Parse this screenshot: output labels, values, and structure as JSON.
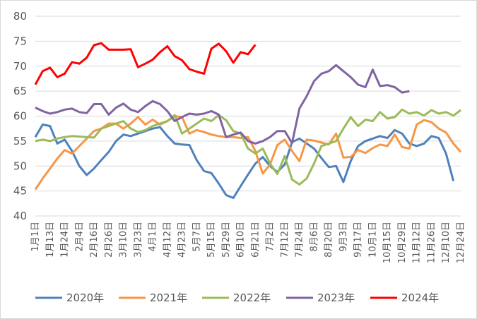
{
  "chart_data": {
    "type": "line",
    "categories": [
      "1月1日",
      null,
      "1月13日",
      null,
      "1月24日",
      null,
      "2月4日",
      null,
      "2月16日",
      null,
      "2月26日",
      null,
      "3月10日",
      null,
      "3月23日",
      null,
      "4月1日",
      null,
      "4月12日",
      null,
      "4月23日",
      null,
      "5月7日",
      null,
      "5月15日",
      null,
      "5月29日",
      null,
      "6月10日",
      null,
      "6月21日",
      null,
      "7月2日",
      null,
      "7月12日",
      null,
      "7月24日",
      null,
      "8月6日",
      null,
      "8月20日",
      null,
      "9月3日",
      null,
      "9月17日",
      null,
      "10月1日",
      null,
      "10月15日",
      null,
      "10月29日",
      null,
      "11月12日",
      null,
      "11月26日",
      null,
      "12月10日",
      null,
      "12月24日"
    ],
    "series": [
      {
        "name": "2020年",
        "color": "#4f81bd",
        "values": [
          55.8,
          58.3,
          58,
          54.5,
          55.3,
          53,
          50,
          48.2,
          49.5,
          51.2,
          52.8,
          55,
          56.3,
          56,
          56.5,
          57,
          57.5,
          57.8,
          56,
          54.5,
          54.3,
          54.2,
          51.2,
          49,
          48.6,
          46.5,
          44.2,
          43.6,
          46,
          48.3,
          50.5,
          51.8,
          50,
          48.8,
          50.3,
          54.8,
          55.5,
          54.5,
          53.5,
          51.6,
          49.8,
          50,
          46.8,
          51,
          54,
          55,
          55.5,
          56,
          55.6,
          57.2,
          56.5,
          54.5,
          54,
          54.5,
          56,
          55.6,
          52.5,
          47,
          null
        ]
      },
      {
        "name": "2021年",
        "color": "#f79646",
        "values": [
          45.3,
          47.5,
          49.5,
          51.5,
          53.2,
          52.5,
          54,
          55.5,
          57,
          57.5,
          58.5,
          58.5,
          57.5,
          58.5,
          59.8,
          58.3,
          59.3,
          58.3,
          59,
          60,
          59.8,
          56.5,
          57.2,
          56.8,
          56.3,
          56,
          55.8,
          55.8,
          55.6,
          55.8,
          53,
          48.5,
          50.3,
          54.2,
          55.3,
          53,
          51,
          55.3,
          55.1,
          54.7,
          54.3,
          56.5,
          51.7,
          51.8,
          53.2,
          52.6,
          53.6,
          54.3,
          54,
          56.3,
          53.8,
          53.5,
          58.3,
          59.2,
          58.8,
          57.5,
          56.7,
          54.5,
          52.8
        ]
      },
      {
        "name": "2022年",
        "color": "#9bbb59",
        "values": [
          55,
          55.3,
          55,
          55.5,
          55.8,
          56,
          55.9,
          55.8,
          55.7,
          57.5,
          58,
          58.5,
          59,
          57.5,
          56.8,
          57.2,
          58,
          58.5,
          59,
          60.2,
          56.5,
          57.5,
          58.5,
          59.5,
          59,
          60.2,
          59.2,
          57,
          56.5,
          53.5,
          52.5,
          53.5,
          50.5,
          48.4,
          52,
          47.3,
          46.3,
          47.5,
          50.5,
          54,
          54.5,
          55,
          57.5,
          59.8,
          58,
          59.3,
          59,
          60.8,
          59.5,
          59.8,
          61.3,
          60.5,
          60.8,
          60.1,
          61.2,
          60.5,
          60.8,
          60.1,
          61.2
        ]
      },
      {
        "name": "2023年",
        "color": "#8064a2",
        "values": [
          61.7,
          61,
          60.5,
          60.8,
          61.3,
          61.5,
          60.8,
          60.6,
          62.4,
          62.4,
          60.3,
          61.7,
          62.5,
          61.3,
          60.8,
          62,
          63,
          62.4,
          61,
          59,
          59.8,
          60.5,
          60.3,
          60.5,
          61,
          60.3,
          55.8,
          56.3,
          56.7,
          55,
          54.5,
          55,
          55.8,
          57,
          57,
          54.6,
          61.5,
          64,
          67,
          68.5,
          69,
          70.2,
          69,
          67.8,
          66.3,
          65.8,
          69.3,
          66,
          66.2,
          65.8,
          64.7,
          65,
          null,
          null,
          null,
          null,
          null,
          null,
          null
        ]
      },
      {
        "name": "2024年",
        "color": "#ff0000",
        "values": [
          66.3,
          69,
          69.7,
          67.8,
          68.5,
          70.8,
          70.5,
          71.7,
          74.2,
          74.6,
          73.3,
          73.3,
          73.3,
          73.4,
          69.8,
          70.5,
          71.3,
          72.8,
          74,
          72,
          71.2,
          69.4,
          68.9,
          68.5,
          73.5,
          74.5,
          73,
          70.7,
          72.8,
          72.4,
          74.3,
          null,
          null,
          null,
          null,
          null,
          null,
          null,
          null,
          null,
          null,
          null,
          null,
          null,
          null,
          null,
          null,
          null,
          null,
          null,
          null,
          null,
          null,
          null,
          null,
          null,
          null,
          null,
          null
        ]
      }
    ],
    "ylim": [
      40,
      80
    ],
    "yticks": [
      40,
      45,
      50,
      55,
      60,
      65,
      70,
      75,
      80
    ],
    "grid": true,
    "legend": "bottom"
  }
}
